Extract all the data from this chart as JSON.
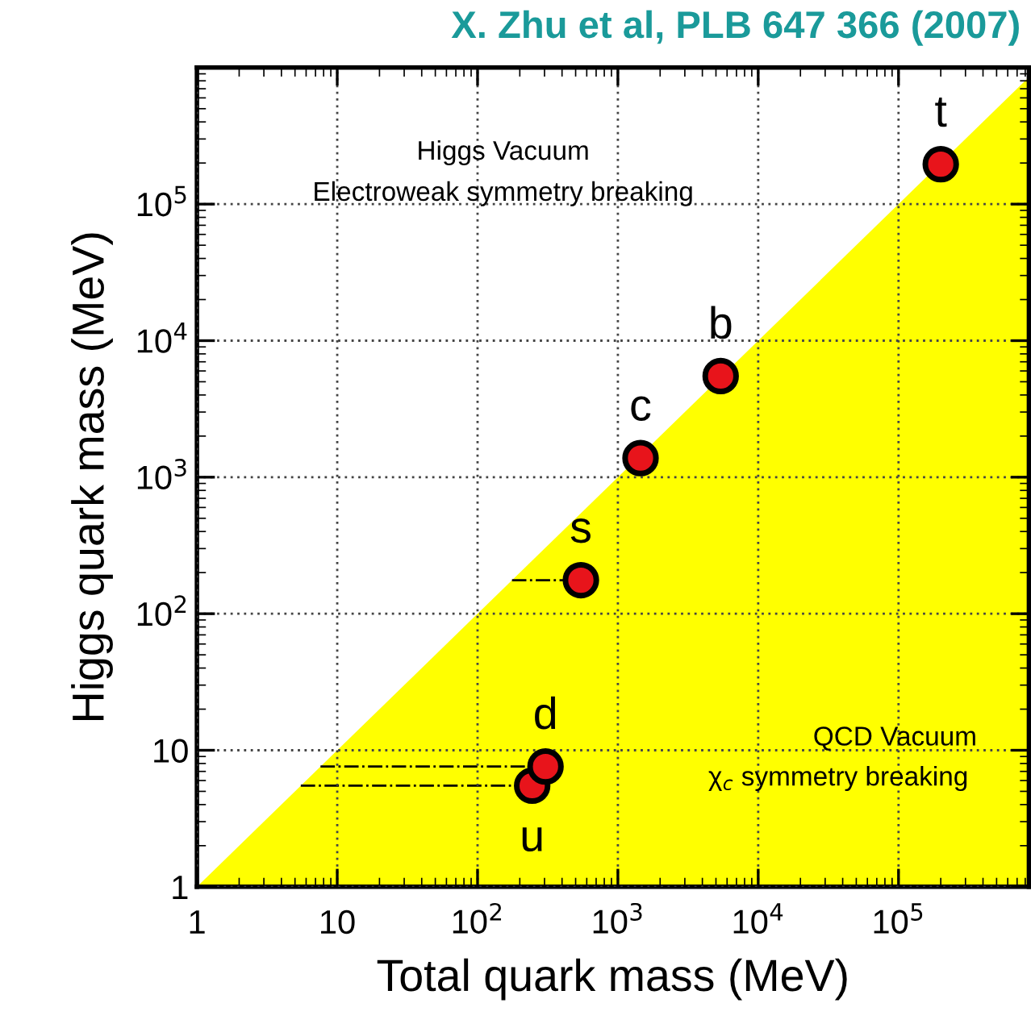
{
  "chart_data": {
    "type": "scatter",
    "title": "X. Zhu et al, PLB 647 366 (2007)",
    "xlabel": "Total quark mass (MeV)",
    "ylabel": "Higgs quark mass (MeV)",
    "log": "xy",
    "grid": true,
    "xlim": [
      1,
      850000
    ],
    "ylim": [
      1,
      1000000
    ],
    "xticks": [
      1,
      10,
      {
        "value": 100,
        "label": "10$^{2}$"
      },
      {
        "value": 1000,
        "label": "10$^{3}$"
      },
      {
        "value": 10000,
        "label": "10$^{4}$"
      },
      {
        "value": 100000,
        "label": "10$^{5}$"
      }
    ],
    "yticks": [
      1,
      10,
      {
        "value": 100,
        "label": "10$^{2}$"
      },
      {
        "value": 1000,
        "label": "10$^{3}$"
      },
      {
        "value": 10000,
        "label": "10$^{4}$"
      },
      {
        "value": 100000,
        "label": "10$^{5}$"
      }
    ],
    "series": [
      {
        "type": "area",
        "color": "#ffff00",
        "x": [
          1,
          850000
        ],
        "values": [
          1,
          850000
        ]
      },
      {
        "marker": "circle",
        "color": "#e8141b",
        "x": [
          245,
          305,
          545,
          1450,
          5400,
          200000
        ],
        "values": [
          5.5,
          7.6,
          176,
          1380,
          5500,
          196000
        ],
        "xerrors": [
          [
            5.5,
            245
          ],
          [
            7.6,
            305
          ],
          [
            176,
            545
          ],
          null,
          null,
          null
        ],
        "line_style": "dashed"
      }
    ],
    "annotations": [
      {
        "text": "u",
        "x": 245,
        "y": 5.5
      },
      {
        "text": "d",
        "x": 305,
        "y": 7.6
      },
      {
        "text": "s",
        "x": 545,
        "y": 176
      },
      {
        "text": "c",
        "x": 1450,
        "y": 1380
      },
      {
        "text": "b",
        "x": 5400,
        "y": 5500
      },
      {
        "text": "t",
        "x": 200000,
        "y": 196000
      },
      "Higgs Vacuum",
      "Electroweak symmetry breaking",
      "QCD Vacuum",
      "χ$_{c}$ symmetry breaking"
    ]
  }
}
